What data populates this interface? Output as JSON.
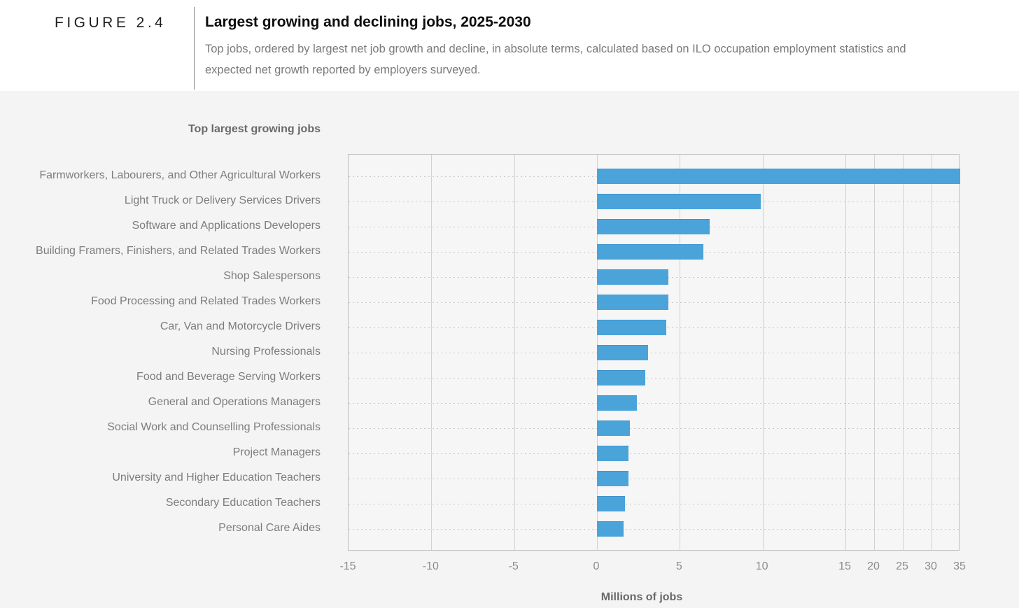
{
  "figure": {
    "label": "FIGURE 2.4",
    "title": "Largest growing and declining jobs, 2025-2030",
    "subtitle": "Top jobs, ordered by largest net job growth and decline, in absolute terms, calculated based on ILO occupation employment statistics and expected net growth  reported by employers surveyed."
  },
  "section": {
    "heading": "Top largest growing jobs"
  },
  "chart_data": {
    "type": "bar",
    "orientation": "horizontal",
    "title": "Top largest growing jobs",
    "xlabel": "Millions of jobs",
    "categories": [
      "Farmworkers, Labourers, and Other Agricultural Workers",
      "Light Truck or Delivery Services Drivers",
      "Software and Applications Developers",
      "Building Framers, Finishers, and Related Trades Workers",
      "Shop Salespersons",
      "Food Processing and Related Trades Workers",
      "Car, Van and Motorcycle Drivers",
      "Nursing Professionals",
      "Food and Beverage Serving Workers",
      "General and Operations Managers",
      "Social Work and Counselling Professionals",
      "Project Managers",
      "University and Higher Education Teachers",
      "Secondary Education Teachers",
      "Personal Care Aides"
    ],
    "values": [
      35,
      9.9,
      6.8,
      6.4,
      4.3,
      4.3,
      4.2,
      3.1,
      2.9,
      2.4,
      2.0,
      1.9,
      1.9,
      1.7,
      1.6
    ],
    "x_ticks": [
      -15,
      -10,
      -5,
      0,
      5,
      10,
      15,
      20,
      25,
      30,
      35
    ],
    "xlim": [
      -15,
      35
    ],
    "scale_break": {
      "at": 15,
      "note": "axis compressed beyond 15 (ticks 15-35 at ~1/3 spacing)"
    },
    "grid": true,
    "legend": false,
    "bar_color": "#4aa4da",
    "bar_value_unit": "millions of jobs"
  }
}
